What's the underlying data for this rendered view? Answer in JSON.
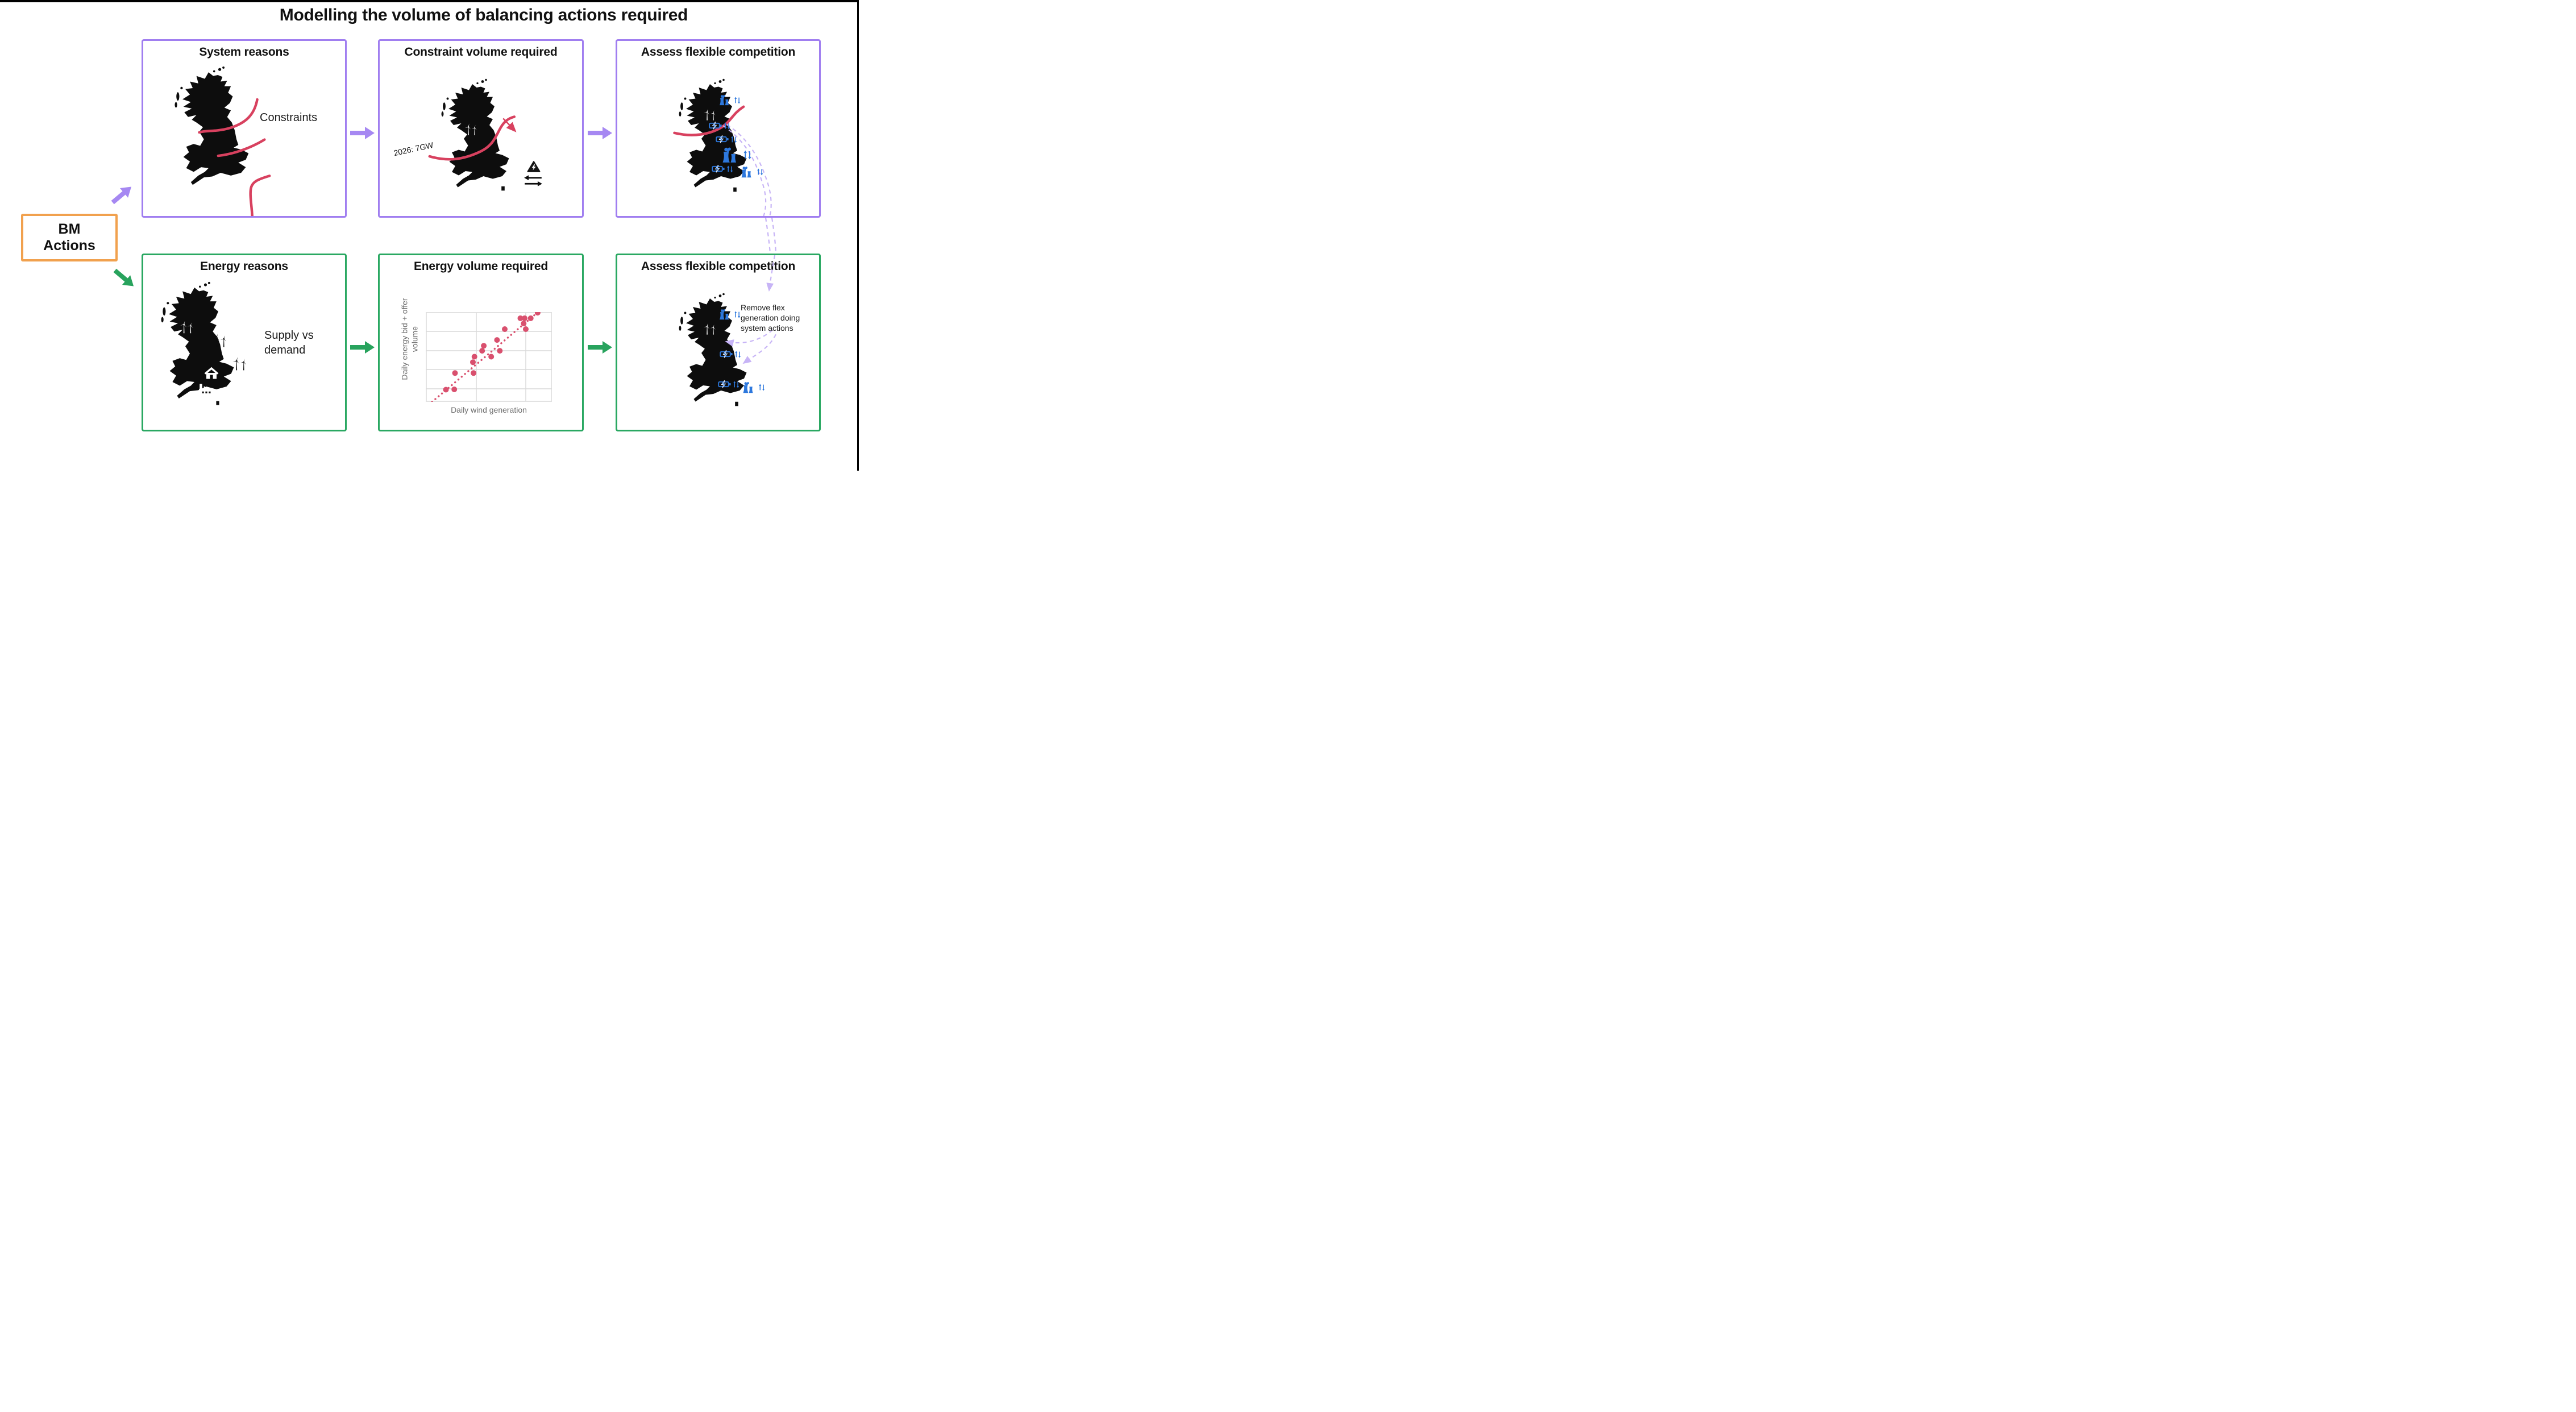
{
  "title": "Modelling the volume of balancing actions required",
  "bm_box": {
    "line1": "BM",
    "line2": "Actions"
  },
  "flow": {
    "system_reasons": {
      "title": "System reasons",
      "label": "Constraints"
    },
    "constraint_volume": {
      "title": "Constraint volume required",
      "constraint_label": "2026: 7GW"
    },
    "assess_flex_top": {
      "title": "Assess flexible competition"
    },
    "energy_reasons": {
      "title": "Energy reasons",
      "label": "Supply vs demand"
    },
    "energy_volume": {
      "title": "Energy volume required"
    },
    "assess_flex_bottom": {
      "title": "Assess flexible competition",
      "annotation": "Remove flex generation doing system actions"
    }
  },
  "chart_data": {
    "type": "scatter",
    "title": "Energy volume required",
    "xlabel": "Daily wind generation",
    "ylabel": "Daily energy bid + offer volume",
    "axis_ticks": "none",
    "grid": true,
    "xlim": [
      0,
      100
    ],
    "ylim": [
      0,
      100
    ],
    "x": [
      16.0,
      22.6,
      23.2,
      37.4,
      37.9,
      38.6,
      44.7,
      46.0,
      51.9,
      56.5,
      58.7,
      62.6,
      75.0,
      77.6,
      78.4,
      79.3,
      83.2,
      88.7
    ],
    "y": [
      13.6,
      13.9,
      32.1,
      44.2,
      32.1,
      50.3,
      56.9,
      62.5,
      50.3,
      68.9,
      56.9,
      81.0,
      93.1,
      87.3,
      93.1,
      81.0,
      93.1,
      99.3
    ],
    "trend": {
      "x1": 5,
      "y1": 0,
      "x2": 89,
      "y2": 100,
      "style": "dotted"
    }
  },
  "colors": {
    "purple_border": "#a07ef0",
    "purple_arrow": "#a688f2",
    "lavender_dashed": "#c7b4f6",
    "green_border": "#2aa862",
    "green_arrow": "#28a35d",
    "orange_border": "#f1a14e",
    "red_constraint": "#d8415f",
    "scatter_dot": "#d9506e",
    "blue_flex": "#2d78dd",
    "map_black": "#0d0d0d",
    "grid_gray": "#d9d9d9",
    "axis_label_gray": "#6e6e6e"
  },
  "icons": {
    "wind-turbine-icon": "three-blade wind turbine silhouette",
    "house-icon": "house (demand) silhouette",
    "factory-icon": "factory (industrial demand) silhouette",
    "power-station-icon": "cooling-tower power station with smoke",
    "battery-flex-icon": "battery with lightning bolt",
    "up-down-arrows-icon": "paired up and down arrows (bid/offer)",
    "constraint-warning-icon": "warning triangle with lightning bolt",
    "swap-arrows-icon": "opposing left/right transfer arrows",
    "block-arrow-icon": "thick flow arrow",
    "dashed-arrow-icon": "dashed link arrow"
  }
}
